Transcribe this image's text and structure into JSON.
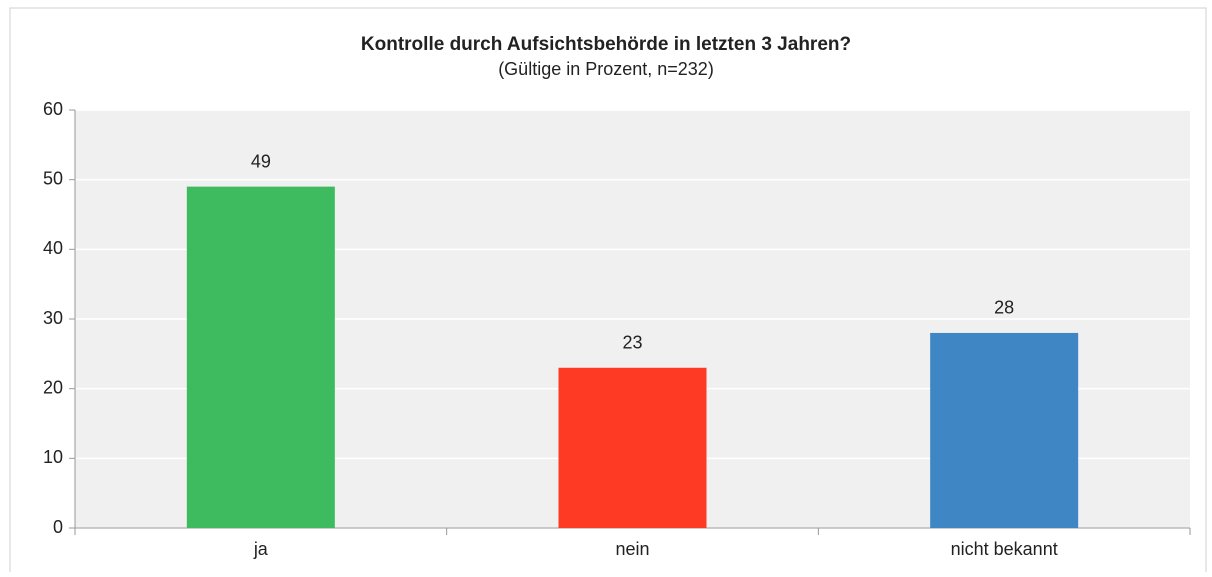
{
  "chart_data": {
    "type": "bar",
    "title": "Kontrolle durch Aufsichtsbehörde in letzten 3 Jahren?",
    "subtitle": "(Gültige in Prozent, n=232)",
    "categories": [
      "ja",
      "nein",
      "nicht bekannt"
    ],
    "values": [
      49,
      23,
      28
    ],
    "colors": [
      "#3dbb5e",
      "#ff3a24",
      "#3f86c5"
    ],
    "ylim": [
      0,
      60
    ],
    "yticks": [
      0,
      10,
      20,
      30,
      40,
      50,
      60
    ],
    "grid": true
  }
}
